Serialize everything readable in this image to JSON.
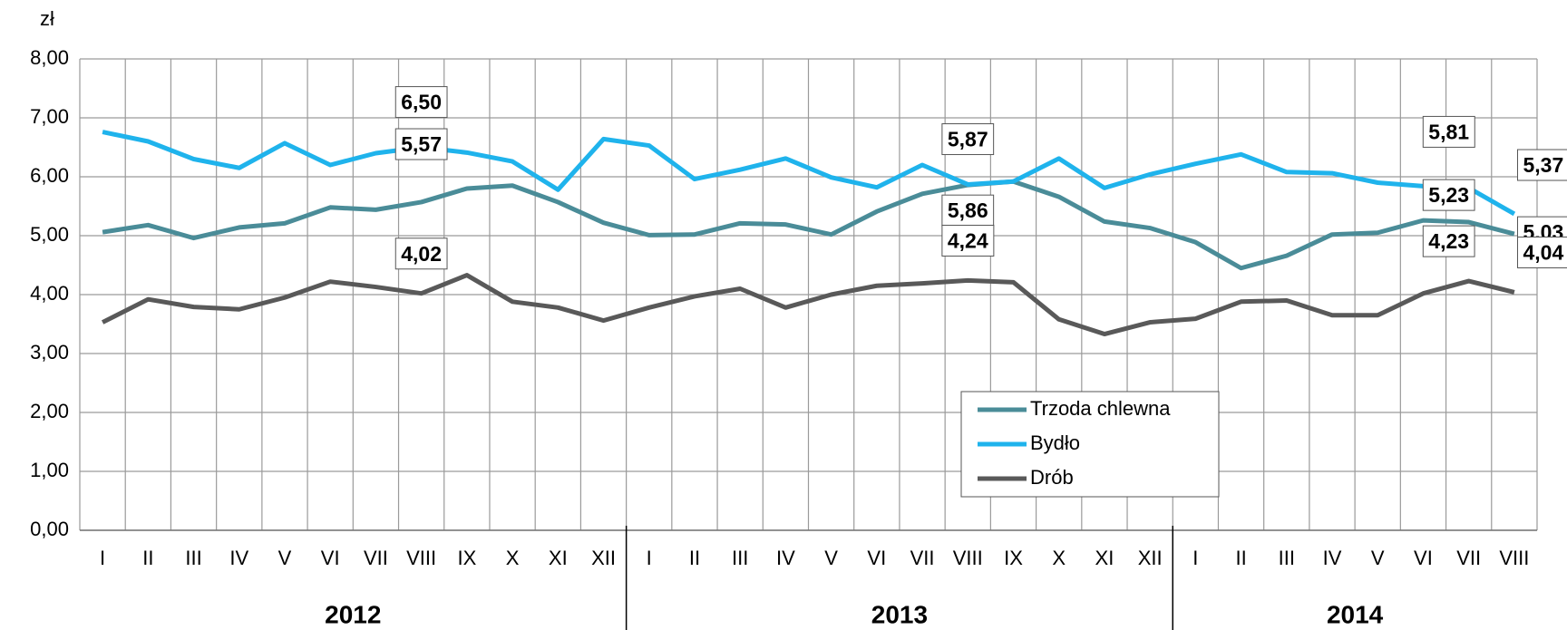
{
  "chart_data": {
    "type": "line",
    "y_label": "zł",
    "categories": [
      "I",
      "II",
      "III",
      "IV",
      "V",
      "VI",
      "VII",
      "VIII",
      "IX",
      "X",
      "XI",
      "XII",
      "I",
      "II",
      "III",
      "IV",
      "V",
      "VI",
      "VII",
      "VIII",
      "IX",
      "X",
      "XI",
      "XII",
      "I",
      "II",
      "III",
      "IV",
      "V",
      "VI",
      "VII",
      "VIII"
    ],
    "years": [
      "2012",
      "2013",
      "2014"
    ],
    "series": [
      {
        "name": "Trzoda chlewna",
        "color": "#4a8c98",
        "values": [
          5.06,
          5.18,
          4.96,
          5.14,
          5.21,
          5.48,
          5.44,
          5.57,
          5.8,
          5.85,
          5.57,
          5.22,
          5.01,
          5.02,
          5.21,
          5.19,
          5.02,
          5.41,
          5.71,
          5.86,
          5.92,
          5.66,
          5.24,
          5.13,
          4.89,
          4.45,
          4.66,
          5.02,
          5.05,
          5.26,
          5.23,
          5.03
        ],
        "value_labels": [
          null,
          null,
          null,
          null,
          null,
          null,
          null,
          "5,57",
          null,
          null,
          null,
          null,
          null,
          null,
          null,
          null,
          null,
          null,
          null,
          "5,86",
          null,
          null,
          null,
          null,
          null,
          null,
          null,
          null,
          null,
          null,
          "5,23",
          "5,03"
        ]
      },
      {
        "name": "Bydło",
        "color": "#1fb3ec",
        "values": [
          6.76,
          6.6,
          6.3,
          6.15,
          6.57,
          6.2,
          6.4,
          6.5,
          6.41,
          6.26,
          5.78,
          6.64,
          6.53,
          5.96,
          6.12,
          6.31,
          5.99,
          5.82,
          6.2,
          5.87,
          5.92,
          6.31,
          5.81,
          6.04,
          6.22,
          6.38,
          6.08,
          6.06,
          5.9,
          5.84,
          5.81,
          5.37
        ],
        "value_labels": [
          null,
          null,
          null,
          null,
          null,
          null,
          null,
          "6,50",
          null,
          null,
          null,
          null,
          null,
          null,
          null,
          null,
          null,
          null,
          null,
          "5,87",
          null,
          null,
          null,
          null,
          null,
          null,
          null,
          null,
          null,
          null,
          "5,81",
          "5,37"
        ]
      },
      {
        "name": "Drób",
        "color": "#595959",
        "values": [
          3.53,
          3.92,
          3.79,
          3.75,
          3.95,
          4.22,
          4.13,
          4.02,
          4.33,
          3.88,
          3.78,
          3.56,
          3.78,
          3.97,
          4.1,
          3.78,
          4.0,
          4.15,
          4.19,
          4.24,
          4.21,
          3.58,
          3.33,
          3.53,
          3.59,
          3.88,
          3.9,
          3.65,
          3.65,
          4.02,
          4.23,
          4.04
        ],
        "value_labels": [
          null,
          null,
          null,
          null,
          null,
          null,
          null,
          "4,02",
          null,
          null,
          null,
          null,
          null,
          null,
          null,
          null,
          null,
          null,
          null,
          "4,24",
          null,
          null,
          null,
          null,
          null,
          null,
          null,
          null,
          null,
          null,
          "4,23",
          "4,04"
        ]
      }
    ],
    "ylim": [
      0,
      8
    ],
    "yticks": [
      {
        "value": 0,
        "label": "0,00"
      },
      {
        "value": 1,
        "label": "1,00"
      },
      {
        "value": 2,
        "label": "2,00"
      },
      {
        "value": 3,
        "label": "3,00"
      },
      {
        "value": 4,
        "label": "4,00"
      },
      {
        "value": 5,
        "label": "5,00"
      },
      {
        "value": 6,
        "label": "6,00"
      },
      {
        "value": 7,
        "label": "7,00"
      },
      {
        "value": 8,
        "label": "8,00"
      }
    ],
    "grid": true
  }
}
